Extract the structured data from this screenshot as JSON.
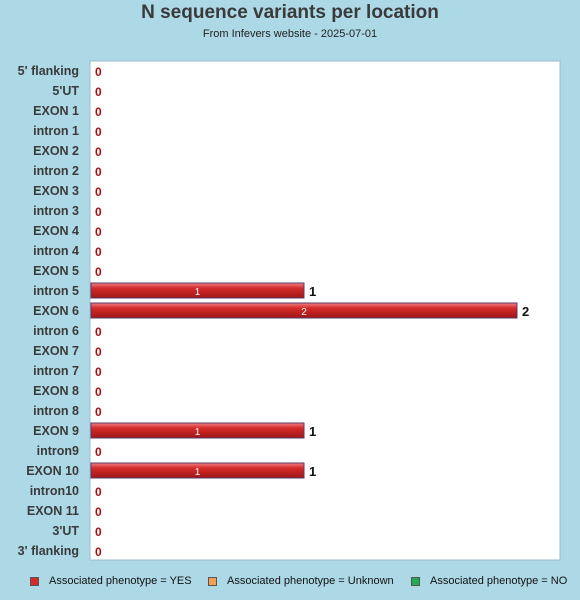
{
  "header": {
    "title": "N sequence variants per location",
    "subtitle": "From Infevers website - 2025-07-01"
  },
  "legend": {
    "items": [
      {
        "label": "Associated phenotype = YES",
        "color": "#d42a2a"
      },
      {
        "label": "Associated phenotype = Unknown",
        "color": "#f0a050"
      },
      {
        "label": "Associated phenotype = NO",
        "color": "#22aa55"
      }
    ]
  },
  "chart_data": {
    "type": "bar",
    "orientation": "horizontal",
    "categories": [
      "5' flanking",
      "5'UT",
      "EXON 1",
      "intron 1",
      "EXON 2",
      "intron 2",
      "EXON 3",
      "intron 3",
      "EXON 4",
      "intron 4",
      "EXON 5",
      "intron 5",
      "EXON 6",
      "intron 6",
      "EXON 7",
      "intron 7",
      "EXON 8",
      "intron 8",
      "EXON 9",
      "intron9",
      "EXON 10",
      "intron10",
      "EXON 11",
      "3'UT",
      "3' flanking"
    ],
    "series": [
      {
        "name": "Associated phenotype = YES",
        "color": "#d42a2a",
        "values": [
          0,
          0,
          0,
          0,
          0,
          0,
          0,
          0,
          0,
          0,
          0,
          1,
          2,
          0,
          0,
          0,
          0,
          0,
          1,
          0,
          1,
          0,
          0,
          0,
          0
        ]
      },
      {
        "name": "Associated phenotype = Unknown",
        "color": "#f0a050",
        "values": [
          0,
          0,
          0,
          0,
          0,
          0,
          0,
          0,
          0,
          0,
          0,
          0,
          0,
          0,
          0,
          0,
          0,
          0,
          0,
          0,
          0,
          0,
          0,
          0,
          0
        ]
      },
      {
        "name": "Associated phenotype = NO",
        "color": "#22aa55",
        "values": [
          0,
          0,
          0,
          0,
          0,
          0,
          0,
          0,
          0,
          0,
          0,
          0,
          0,
          0,
          0,
          0,
          0,
          0,
          0,
          0,
          0,
          0,
          0,
          0,
          0
        ]
      }
    ],
    "totals": [
      0,
      0,
      0,
      0,
      0,
      0,
      0,
      0,
      0,
      0,
      0,
      1,
      2,
      0,
      0,
      0,
      0,
      0,
      1,
      0,
      1,
      0,
      0,
      0,
      0
    ],
    "xlim": [
      0,
      2
    ],
    "title": "N sequence variants per location",
    "subtitle": "From Infevers website - 2025-07-01",
    "legend_position": "bottom",
    "grid": false
  }
}
